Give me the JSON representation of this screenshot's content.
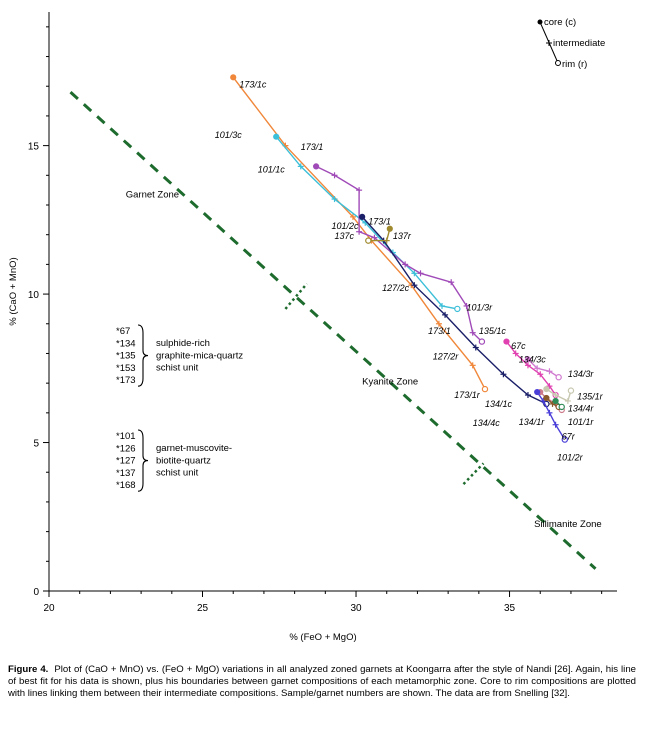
{
  "chart_data": {
    "type": "scatter",
    "xlabel": "% (FeO + MgO)",
    "ylabel": "% (CaO + MnO)",
    "xlim": [
      20,
      38.5
    ],
    "ylim": [
      0,
      19.5
    ],
    "x_ticks": [
      20,
      25,
      30,
      35
    ],
    "y_ticks": [
      0,
      5,
      10,
      15
    ],
    "grid": false,
    "legend_position": "top-right",
    "legend": {
      "core": "core (c)",
      "intermediate": "intermediate",
      "rim": "rim (r)"
    },
    "zones": [
      {
        "label": "Garnet Zone",
        "x": 22.5,
        "y": 13.25
      },
      {
        "label": "Kyanite Zone",
        "x": 30.2,
        "y": 6.95
      },
      {
        "label": "Sillimanite Zone",
        "x": 35.8,
        "y": 2.15
      }
    ],
    "best_fit_line": {
      "color": "#1e6b2e",
      "points": [
        [
          20.7,
          16.8
        ],
        [
          37.8,
          0.75
        ]
      ]
    },
    "zone_boundaries": [
      {
        "points": [
          [
            27.7,
            9.5
          ],
          [
            28.4,
            10.35
          ]
        ]
      },
      {
        "points": [
          [
            33.5,
            3.6
          ],
          [
            34.15,
            4.3
          ]
        ]
      }
    ],
    "series": [
      {
        "name": "173/1",
        "color": "#f0873a",
        "points": [
          [
            26.0,
            17.3
          ],
          [
            27.7,
            15.0
          ],
          [
            29.9,
            12.6
          ],
          [
            30.5,
            11.8
          ],
          [
            31.8,
            10.3
          ],
          [
            32.7,
            9.0
          ],
          [
            33.8,
            7.6
          ],
          [
            34.2,
            6.8
          ]
        ]
      },
      {
        "name": "101/3",
        "color": "#3cbfd8",
        "points": [
          [
            27.4,
            15.3
          ],
          [
            28.2,
            14.3
          ],
          [
            29.3,
            13.2
          ],
          [
            30.3,
            12.4
          ],
          [
            31.2,
            11.4
          ],
          [
            31.9,
            10.7
          ],
          [
            32.8,
            9.6
          ],
          [
            33.3,
            9.5
          ]
        ]
      },
      {
        "name": "101/1",
        "color": "#a04ab8",
        "points": [
          [
            28.7,
            14.3
          ],
          [
            29.3,
            14.0
          ],
          [
            30.1,
            13.5
          ],
          [
            30.1,
            12.1
          ],
          [
            30.6,
            11.9
          ],
          [
            31.6,
            11.0
          ],
          [
            32.1,
            10.7
          ],
          [
            33.1,
            10.4
          ],
          [
            33.6,
            9.6
          ],
          [
            33.8,
            8.7
          ],
          [
            34.1,
            8.4
          ]
        ]
      },
      {
        "name": "127/2",
        "color": "#1a1f68",
        "points": [
          [
            30.2,
            12.6
          ],
          [
            30.9,
            11.8
          ],
          [
            31.9,
            10.3
          ],
          [
            32.9,
            9.3
          ],
          [
            33.9,
            8.2
          ],
          [
            34.8,
            7.3
          ],
          [
            35.6,
            6.6
          ],
          [
            36.2,
            6.3
          ]
        ]
      },
      {
        "name": "137",
        "color": "#a08a2e",
        "points": [
          [
            31.1,
            12.2
          ],
          [
            31.0,
            11.8
          ],
          [
            30.4,
            11.8
          ]
        ]
      },
      {
        "name": "67",
        "color": "#e040b0",
        "points": [
          [
            34.9,
            8.4
          ],
          [
            35.2,
            8.0
          ],
          [
            35.6,
            7.6
          ],
          [
            36.0,
            7.3
          ],
          [
            36.3,
            6.9
          ],
          [
            36.5,
            6.6
          ]
        ]
      },
      {
        "name": "134/3",
        "color": "#d07ad0",
        "points": [
          [
            35.6,
            7.8
          ],
          [
            35.9,
            7.5
          ],
          [
            36.3,
            7.4
          ],
          [
            36.6,
            7.2
          ]
        ]
      },
      {
        "name": "134/4",
        "color": "#cc7a8a",
        "points": [
          [
            36.0,
            6.7
          ],
          [
            36.2,
            6.5
          ],
          [
            36.5,
            6.3
          ],
          [
            36.7,
            6.1
          ]
        ]
      },
      {
        "name": "101/2",
        "color": "#4a3ed8",
        "points": [
          [
            35.9,
            6.7
          ],
          [
            36.1,
            6.4
          ],
          [
            36.3,
            6.0
          ],
          [
            36.5,
            5.6
          ],
          [
            36.8,
            5.1
          ]
        ]
      },
      {
        "name": "135/1",
        "color": "#c8c8b0",
        "points": [
          [
            36.2,
            6.8
          ],
          [
            36.5,
            6.6
          ],
          [
            36.9,
            6.4
          ],
          [
            37.0,
            6.75
          ]
        ]
      },
      {
        "name": "134/1",
        "color": "#8b5a2b",
        "points": [
          [
            36.2,
            6.5
          ],
          [
            36.4,
            6.3
          ],
          [
            36.6,
            6.2
          ]
        ]
      },
      {
        "name": "101/1r",
        "color": "#2e8b57",
        "points": [
          [
            36.5,
            6.4
          ],
          [
            36.7,
            6.2
          ]
        ]
      }
    ],
    "point_labels": [
      {
        "text": "173/1c",
        "x": 26.2,
        "y": 17.05
      },
      {
        "text": "101/3c",
        "x": 25.4,
        "y": 15.35
      },
      {
        "text": "173/1",
        "x": 28.2,
        "y": 14.95
      },
      {
        "text": "101/1c",
        "x": 26.8,
        "y": 14.2
      },
      {
        "text": "173/1",
        "x": 30.4,
        "y": 12.45
      },
      {
        "text": "101/2c",
        "x": 29.2,
        "y": 12.3
      },
      {
        "text": "137c",
        "x": 29.3,
        "y": 11.95
      },
      {
        "text": "137r",
        "x": 31.2,
        "y": 11.95
      },
      {
        "text": "127/2c",
        "x": 30.85,
        "y": 10.2
      },
      {
        "text": "101/3r",
        "x": 33.6,
        "y": 9.55
      },
      {
        "text": "173/1",
        "x": 32.35,
        "y": 8.75
      },
      {
        "text": "135/1c",
        "x": 34.0,
        "y": 8.75
      },
      {
        "text": "67c",
        "x": 35.05,
        "y": 8.25
      },
      {
        "text": "127/2r",
        "x": 32.5,
        "y": 7.9
      },
      {
        "text": "134/3c",
        "x": 35.3,
        "y": 7.8
      },
      {
        "text": "134/3r",
        "x": 36.9,
        "y": 7.3
      },
      {
        "text": "173/1r",
        "x": 33.2,
        "y": 6.6
      },
      {
        "text": "135/1r",
        "x": 37.2,
        "y": 6.55
      },
      {
        "text": "134/1c",
        "x": 34.2,
        "y": 6.3
      },
      {
        "text": "134/4r",
        "x": 36.9,
        "y": 6.15
      },
      {
        "text": "134/4c",
        "x": 33.8,
        "y": 5.65
      },
      {
        "text": "134/1r",
        "x": 35.3,
        "y": 5.7
      },
      {
        "text": "101/1r",
        "x": 36.9,
        "y": 5.7
      },
      {
        "text": "67r",
        "x": 36.7,
        "y": 5.2
      },
      {
        "text": "101/2r",
        "x": 36.55,
        "y": 4.5
      }
    ],
    "groups": [
      {
        "samples": [
          "*67",
          "*134",
          "*135",
          "*153",
          "*173"
        ],
        "unit": [
          "sulphide-rich",
          "graphite-mica-quartz",
          "schist unit"
        ]
      },
      {
        "samples": [
          "*101",
          "*126",
          "*127",
          "*137",
          "*168"
        ],
        "unit": [
          "garnet-muscovite-",
          "biotite-quartz",
          "schist unit"
        ]
      }
    ]
  },
  "caption": {
    "label": "Figure 4.",
    "text": "Plot of (CaO + MnO) vs. (FeO + MgO) variations in all analyzed zoned garnets at Koongarra after the style of Nandi [26]. Again, his line of best fit for his data is shown, plus his boundaries between garnet compositions of each metamorphic zone. Core to rim compositions are plotted with lines linking them between their intermediate compositions. Sample/garnet numbers are shown. The data are from Snelling [32]."
  }
}
